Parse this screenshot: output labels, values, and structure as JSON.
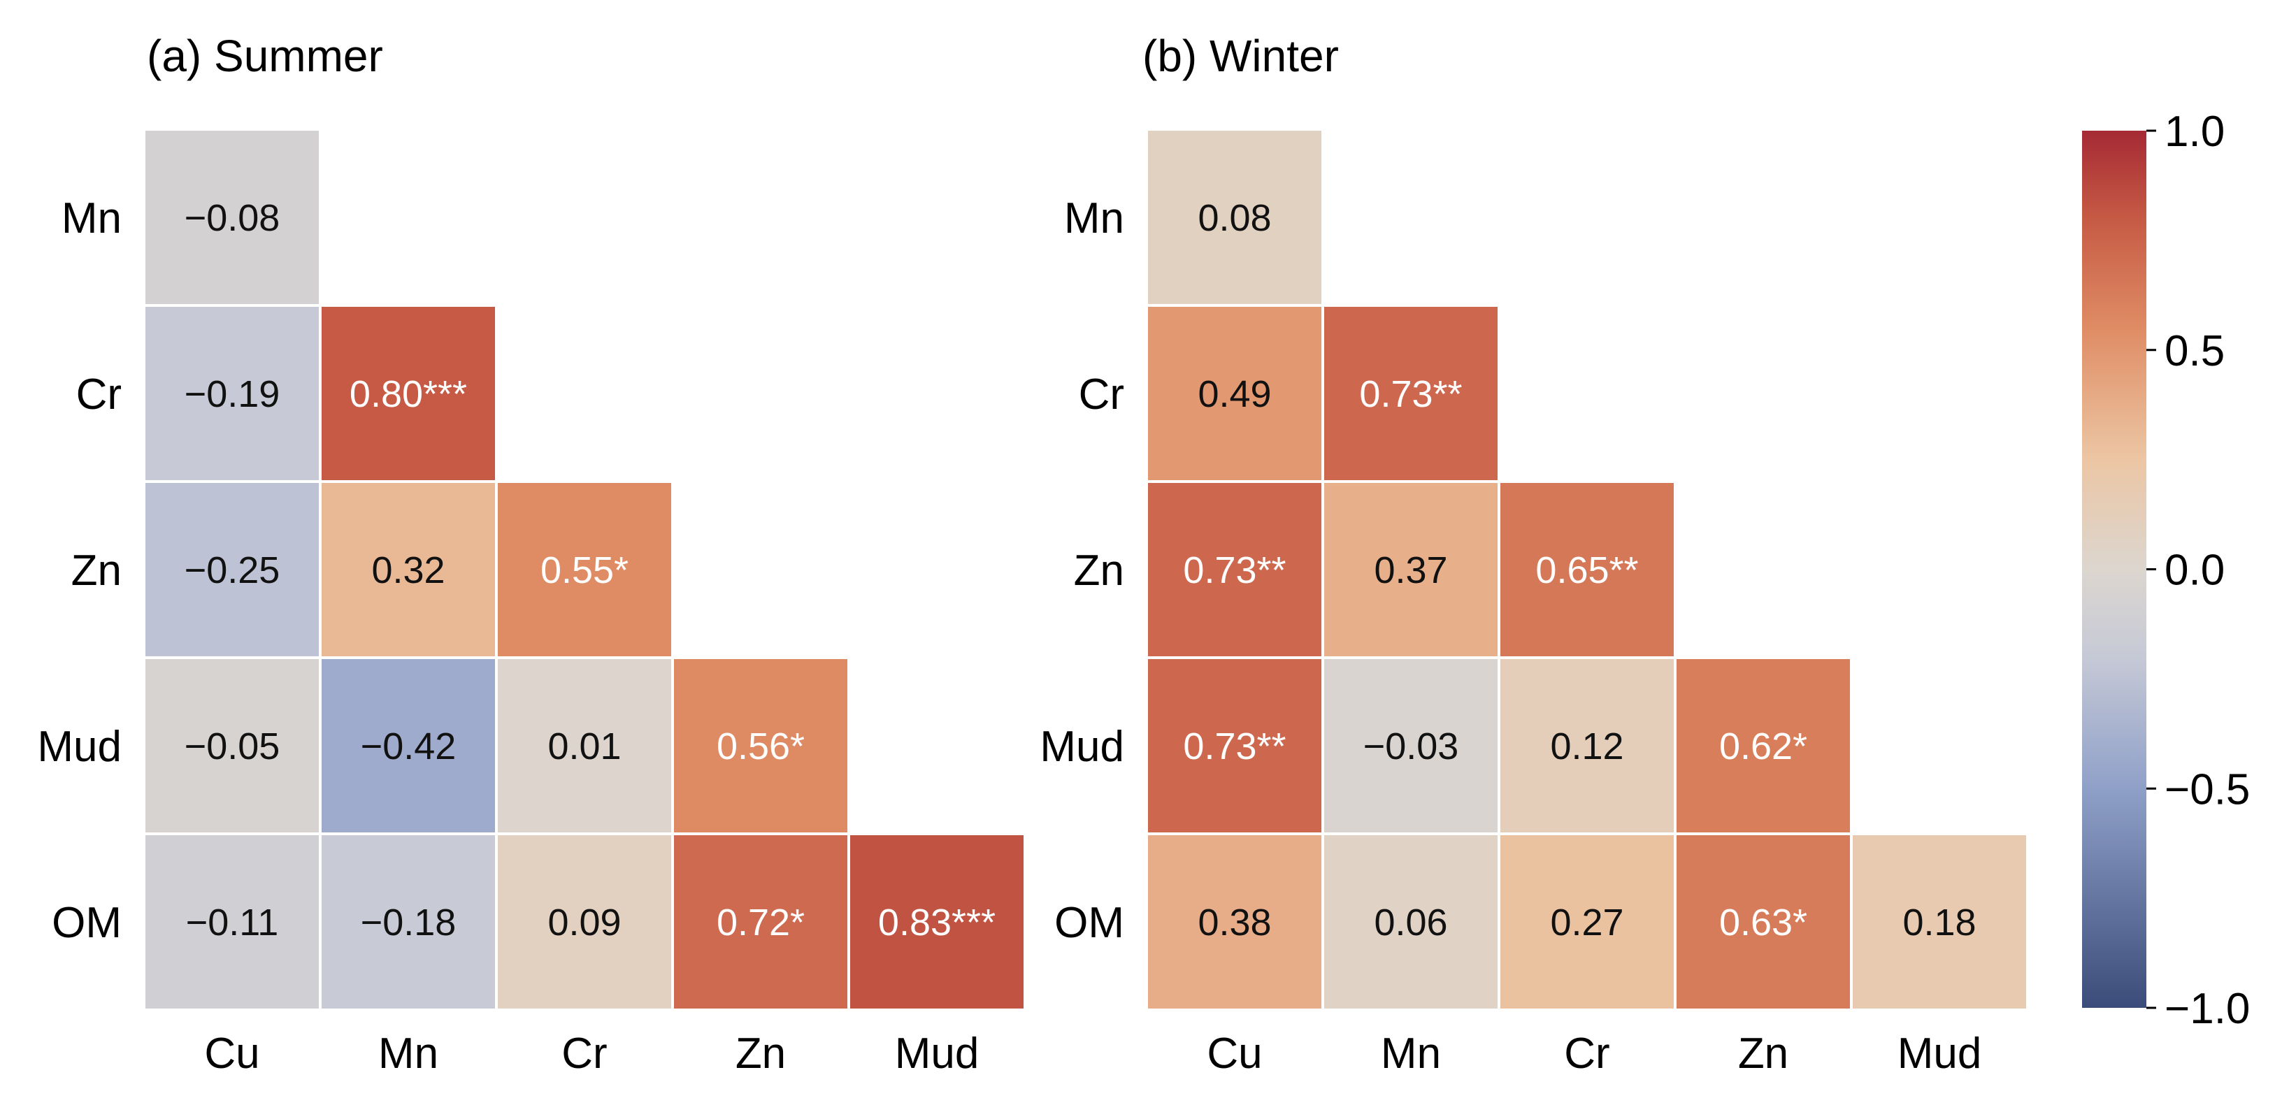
{
  "chart_data": [
    {
      "type": "heatmap",
      "title": "(a) Summer",
      "x_categories": [
        "Cu",
        "Mn",
        "Cr",
        "Zn",
        "Mud"
      ],
      "y_categories": [
        "Mn",
        "Cr",
        "Zn",
        "Mud",
        "OM"
      ],
      "layout": "lower-triangle",
      "cells": [
        [
          {
            "value": -0.08,
            "label": "−0.08"
          }
        ],
        [
          {
            "value": -0.19,
            "label": "−0.19"
          },
          {
            "value": 0.8,
            "label": "0.80***"
          }
        ],
        [
          {
            "value": -0.25,
            "label": "−0.25"
          },
          {
            "value": 0.32,
            "label": "0.32"
          },
          {
            "value": 0.55,
            "label": "0.55*"
          }
        ],
        [
          {
            "value": -0.05,
            "label": "−0.05"
          },
          {
            "value": -0.42,
            "label": "−0.42"
          },
          {
            "value": 0.01,
            "label": "0.01"
          },
          {
            "value": 0.56,
            "label": "0.56*"
          }
        ],
        [
          {
            "value": -0.11,
            "label": "−0.11"
          },
          {
            "value": -0.18,
            "label": "−0.18"
          },
          {
            "value": 0.09,
            "label": "0.09"
          },
          {
            "value": 0.72,
            "label": "0.72*"
          },
          {
            "value": 0.83,
            "label": "0.83***"
          }
        ]
      ]
    },
    {
      "type": "heatmap",
      "title": "(b) Winter",
      "x_categories": [
        "Cu",
        "Mn",
        "Cr",
        "Zn",
        "Mud"
      ],
      "y_categories": [
        "Mn",
        "Cr",
        "Zn",
        "Mud",
        "OM"
      ],
      "layout": "lower-triangle",
      "cells": [
        [
          {
            "value": 0.08,
            "label": "0.08"
          }
        ],
        [
          {
            "value": 0.49,
            "label": "0.49"
          },
          {
            "value": 0.73,
            "label": "0.73**"
          }
        ],
        [
          {
            "value": 0.73,
            "label": "0.73**"
          },
          {
            "value": 0.37,
            "label": "0.37"
          },
          {
            "value": 0.65,
            "label": "0.65**"
          }
        ],
        [
          {
            "value": 0.73,
            "label": "0.73**"
          },
          {
            "value": -0.03,
            "label": "−0.03"
          },
          {
            "value": 0.12,
            "label": "0.12"
          },
          {
            "value": 0.62,
            "label": "0.62*"
          }
        ],
        [
          {
            "value": 0.38,
            "label": "0.38"
          },
          {
            "value": 0.06,
            "label": "0.06"
          },
          {
            "value": 0.27,
            "label": "0.27"
          },
          {
            "value": 0.63,
            "label": "0.63*"
          },
          {
            "value": 0.18,
            "label": "0.18"
          }
        ]
      ]
    }
  ],
  "colorbar": {
    "range": [
      -1.0,
      1.0
    ],
    "ticks": [
      {
        "value": 1.0,
        "label": "1.0"
      },
      {
        "value": 0.5,
        "label": "0.5"
      },
      {
        "value": 0.0,
        "label": "0.0"
      },
      {
        "value": -0.5,
        "label": "−0.5"
      },
      {
        "value": -1.0,
        "label": "−1.0"
      }
    ],
    "colors": [
      {
        "stop": -1.0,
        "hex": "#3b4c7a"
      },
      {
        "stop": -0.5,
        "hex": "#8fa0c8"
      },
      {
        "stop": -0.2,
        "hex": "#c6c9d6"
      },
      {
        "stop": 0.0,
        "hex": "#dcd6cf"
      },
      {
        "stop": 0.25,
        "hex": "#ecc6a4"
      },
      {
        "stop": 0.55,
        "hex": "#df8c64"
      },
      {
        "stop": 0.8,
        "hex": "#c65a45"
      },
      {
        "stop": 1.0,
        "hex": "#a52a34"
      }
    ]
  }
}
